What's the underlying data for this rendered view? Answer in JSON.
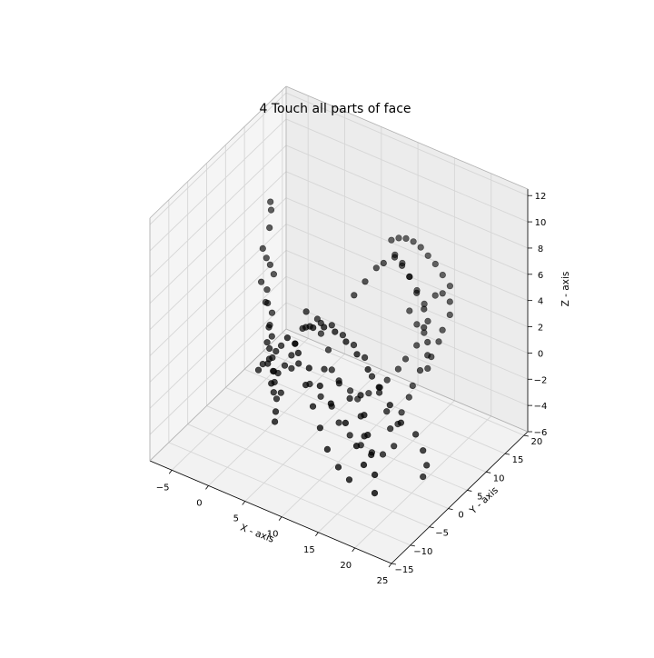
{
  "chart_data": {
    "type": "scatter3d",
    "title": "4 Touch all parts of face",
    "xlabel": "X - axis",
    "ylabel": "Y - axis",
    "zlabel": "Z - axis",
    "xlim": [
      -8,
      25
    ],
    "ylim": [
      -15,
      21
    ],
    "zlim": [
      -6,
      12.5
    ],
    "xticks": [
      -5,
      0,
      5,
      10,
      15,
      20,
      25
    ],
    "yticks": [
      -15,
      -10,
      -5,
      0,
      5,
      10,
      15,
      20
    ],
    "zticks": [
      -6,
      -4,
      -2,
      0,
      2,
      4,
      6,
      8,
      10,
      12
    ],
    "xtick_labels": [
      "−5",
      "0",
      "5",
      "10",
      "15",
      "20",
      "25"
    ],
    "ytick_labels": [
      "−15",
      "−10",
      "−5",
      "0",
      "5",
      "10",
      "15",
      "20"
    ],
    "ztick_labels": [
      "−6",
      "−4",
      "−2",
      "0",
      "2",
      "4",
      "6",
      "8",
      "10",
      "12"
    ],
    "grid": true,
    "marker_color": "#000000",
    "pane_color": "#f2f2f2",
    "series": [
      {
        "points": [
          [
            -5.5,
            12,
            6.8
          ],
          [
            -5.4,
            12,
            6.2
          ],
          [
            -5.1,
            11,
            5.2
          ],
          [
            -5.5,
            10,
            3.8
          ],
          [
            -5,
            10,
            3.2
          ],
          [
            -4.5,
            10,
            2.8
          ],
          [
            -4,
            10,
            2.2
          ],
          [
            -5.2,
            9,
            1.6
          ],
          [
            -4.4,
            9,
            1.2
          ],
          [
            -3.8,
            8,
            0.6
          ],
          [
            -4.6,
            9,
            0.2
          ],
          [
            -3.2,
            8,
            0.0
          ],
          [
            -3.0,
            7,
            -0.6
          ],
          [
            -2.6,
            6,
            -0.4
          ],
          [
            -2.2,
            6,
            -1.0
          ],
          [
            -2.0,
            5,
            -1.6
          ],
          [
            -1.6,
            5,
            -2.2
          ],
          [
            -1.0,
            4,
            -2.8
          ],
          [
            -1.4,
            5,
            -3.2
          ],
          [
            -0.8,
            4,
            -3.6
          ],
          [
            -1.2,
            3,
            -2.0
          ],
          [
            -0.6,
            4,
            -1.2
          ],
          [
            -1.8,
            4,
            -0.8
          ],
          [
            -0.4,
            3,
            -4.0
          ],
          [
            0.0,
            3,
            -4.4
          ],
          [
            -0.2,
            2,
            -3.0
          ],
          [
            0.2,
            3,
            -2.4
          ],
          [
            -1.0,
            3,
            -1.6
          ],
          [
            -2.4,
            4,
            -2.6
          ],
          [
            -3.0,
            4,
            -3.2
          ],
          [
            0.4,
            2,
            -5.0
          ],
          [
            0.8,
            1,
            -5.4
          ],
          [
            0.6,
            3,
            -3.8
          ],
          [
            -0.4,
            5,
            -1.0
          ],
          [
            1.0,
            5,
            -2.4
          ],
          [
            3.0,
            6,
            1.0
          ],
          [
            4.5,
            6,
            1.6
          ],
          [
            6.0,
            6,
            1.8
          ],
          [
            7.5,
            6,
            1.4
          ],
          [
            9.0,
            6,
            1.0
          ],
          [
            10.5,
            6,
            0.4
          ],
          [
            12.0,
            5,
            -0.4
          ],
          [
            13.0,
            5,
            -1.4
          ],
          [
            14.0,
            5,
            -2.6
          ],
          [
            14.5,
            5,
            -3.8
          ],
          [
            15.0,
            5,
            -5.0
          ],
          [
            14.0,
            4,
            -5.6
          ],
          [
            12.5,
            4,
            -5.8
          ],
          [
            11.0,
            4,
            -5.6
          ],
          [
            9.5,
            4,
            -5.2
          ],
          [
            8.0,
            4,
            -4.6
          ],
          [
            6.5,
            5,
            -4.0
          ],
          [
            5.0,
            5,
            -3.6
          ],
          [
            3.5,
            5,
            -3.0
          ],
          [
            2.0,
            4,
            0.0
          ],
          [
            3.0,
            3,
            -1.0
          ],
          [
            4.5,
            2,
            -2.0
          ],
          [
            6.0,
            1,
            -3.0
          ],
          [
            7.5,
            0,
            -4.0
          ],
          [
            9.0,
            -1,
            -5.0
          ],
          [
            10.5,
            -1,
            -6.0
          ],
          [
            12.0,
            -1,
            -6.6
          ],
          [
            2.0,
            2,
            1.0
          ],
          [
            4.0,
            1,
            0.6
          ],
          [
            6.0,
            0,
            0.2
          ],
          [
            8.0,
            -1,
            -0.4
          ],
          [
            10.0,
            -2,
            -1.0
          ],
          [
            12.0,
            -2,
            -2.0
          ],
          [
            13.5,
            -2,
            -3.4
          ],
          [
            14.5,
            -2,
            -4.6
          ],
          [
            6.0,
            4,
            -1.0
          ],
          [
            8.0,
            4,
            -1.4
          ],
          [
            10.0,
            3,
            -2.0
          ],
          [
            11.5,
            3,
            -3.0
          ],
          [
            12.5,
            2,
            -4.0
          ],
          [
            8.0,
            8,
            4.0
          ],
          [
            9.0,
            9,
            5.0
          ],
          [
            10.0,
            10,
            6.0
          ],
          [
            11.0,
            10,
            6.6
          ],
          [
            12.0,
            11,
            7.0
          ],
          [
            13.0,
            11,
            6.6
          ],
          [
            14.0,
            11,
            6.0
          ],
          [
            15.0,
            11,
            5.0
          ],
          [
            16.0,
            11,
            4.0
          ],
          [
            16.5,
            10,
            3.0
          ],
          [
            17.0,
            10,
            2.0
          ],
          [
            17.0,
            10,
            1.0
          ],
          [
            16.5,
            9,
            0.0
          ],
          [
            16.0,
            8,
            -1.0
          ],
          [
            15.5,
            8,
            -2.0
          ],
          [
            15.0,
            7,
            -3.0
          ],
          [
            14.5,
            7,
            -4.0
          ],
          [
            10.0,
            14,
            7.0
          ],
          [
            11.0,
            14,
            7.4
          ],
          [
            12.0,
            14,
            7.6
          ],
          [
            13.0,
            14,
            7.6
          ],
          [
            14.0,
            14,
            7.4
          ],
          [
            15.0,
            14,
            7.0
          ],
          [
            16.0,
            14,
            6.6
          ],
          [
            17.0,
            14,
            6.0
          ],
          [
            18.0,
            14,
            5.4
          ],
          [
            18.5,
            13,
            4.6
          ],
          [
            18.5,
            13,
            3.6
          ],
          [
            18.0,
            12,
            2.6
          ],
          [
            17.5,
            12,
            1.6
          ],
          [
            17.0,
            11,
            0.6
          ],
          [
            16.5,
            11,
            -0.4
          ],
          [
            15.5,
            12,
            1.8
          ],
          [
            16.0,
            12,
            2.8
          ],
          [
            15.0,
            13,
            3.6
          ],
          [
            14.0,
            13,
            4.4
          ],
          [
            13.0,
            13,
            5.2
          ],
          [
            12.0,
            13,
            6.0
          ],
          [
            11.0,
            13,
            6.4
          ],
          [
            16.5,
            13,
            4.6
          ],
          [
            17.5,
            13,
            5.0
          ],
          [
            13.5,
            12,
            3.0
          ],
          [
            14.5,
            12,
            2.2
          ],
          [
            15.0,
            11,
            1.0
          ],
          [
            14.0,
            10,
            0.0
          ],
          [
            13.0,
            10,
            -1.0
          ],
          [
            12.0,
            9,
            -1.8
          ],
          [
            11.0,
            9,
            -2.6
          ],
          [
            10.0,
            8,
            -3.0
          ],
          [
            9.0,
            7,
            -3.4
          ],
          [
            8.0,
            7,
            -3.0
          ],
          [
            7.0,
            6,
            -2.4
          ],
          [
            6.0,
            6,
            -1.6
          ],
          [
            5.0,
            7,
            -0.6
          ],
          [
            4.0,
            7,
            0.4
          ],
          [
            3.5,
            7,
            1.4
          ],
          [
            2.5,
            6,
            2.0
          ],
          [
            2.0,
            6,
            0.6
          ],
          [
            1.5,
            5,
            -0.4
          ],
          [
            1.0,
            5,
            -1.4
          ],
          [
            0.6,
            4,
            -2.0
          ],
          [
            12.0,
            2,
            -1.0
          ],
          [
            13.0,
            1,
            -2.0
          ],
          [
            14.0,
            0,
            -3.0
          ],
          [
            15.0,
            -1,
            -4.0
          ],
          [
            16.0,
            -2,
            -5.0
          ],
          [
            16.5,
            -3,
            -6.0
          ],
          [
            4.0,
            3,
            2.0
          ],
          [
            5.5,
            2,
            2.6
          ],
          [
            7.0,
            2,
            3.0
          ],
          [
            8.5,
            2,
            3.0
          ],
          [
            10.0,
            2,
            2.6
          ],
          [
            11.5,
            2,
            2.0
          ],
          [
            13.0,
            2,
            1.2
          ],
          [
            14.5,
            2,
            0.2
          ],
          [
            16.0,
            2,
            -0.8
          ],
          [
            17.5,
            2,
            -1.8
          ],
          [
            19.0,
            3,
            -2.6
          ],
          [
            20.0,
            3,
            -3.6
          ],
          [
            20.5,
            3,
            -4.6
          ],
          [
            20.0,
            3,
            -5.6
          ]
        ]
      }
    ]
  }
}
